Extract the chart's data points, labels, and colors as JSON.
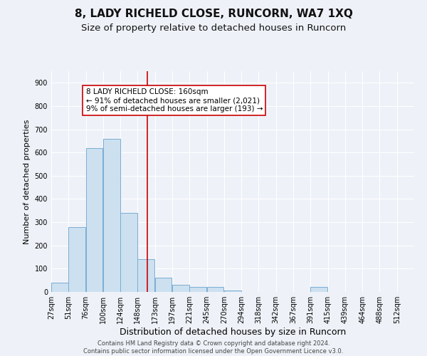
{
  "title": "8, LADY RICHELD CLOSE, RUNCORN, WA7 1XQ",
  "subtitle": "Size of property relative to detached houses in Runcorn",
  "xlabel": "Distribution of detached houses by size in Runcorn",
  "ylabel": "Number of detached properties",
  "categories": [
    "27sqm",
    "51sqm",
    "76sqm",
    "100sqm",
    "124sqm",
    "148sqm",
    "173sqm",
    "197sqm",
    "221sqm",
    "245sqm",
    "270sqm",
    "294sqm",
    "318sqm",
    "342sqm",
    "367sqm",
    "391sqm",
    "415sqm",
    "439sqm",
    "464sqm",
    "488sqm",
    "512sqm"
  ],
  "values": [
    40,
    280,
    620,
    660,
    340,
    140,
    60,
    30,
    20,
    20,
    5,
    0,
    0,
    0,
    0,
    20,
    0,
    0,
    0,
    0,
    0
  ],
  "bar_color": "#cce0f0",
  "bar_edge_color": "#7aadd4",
  "ylim": [
    0,
    950
  ],
  "yticks": [
    0,
    100,
    200,
    300,
    400,
    500,
    600,
    700,
    800,
    900
  ],
  "property_line_x": 160,
  "property_line_color": "#cc0000",
  "annotation_text": "8 LADY RICHELD CLOSE: 160sqm\n← 91% of detached houses are smaller (2,021)\n9% of semi-detached houses are larger (193) →",
  "annotation_box_color": "#ffffff",
  "annotation_box_edge_color": "#cc0000",
  "footer_line1": "Contains HM Land Registry data © Crown copyright and database right 2024.",
  "footer_line2": "Contains public sector information licensed under the Open Government Licence v3.0.",
  "title_fontsize": 11,
  "subtitle_fontsize": 9.5,
  "xlabel_fontsize": 9,
  "ylabel_fontsize": 8,
  "tick_fontsize": 7,
  "annotation_fontsize": 7.5,
  "background_color": "#eef2f8",
  "plot_bg_color": "#eef2f8",
  "grid_color": "#ffffff",
  "bin_width": 24
}
